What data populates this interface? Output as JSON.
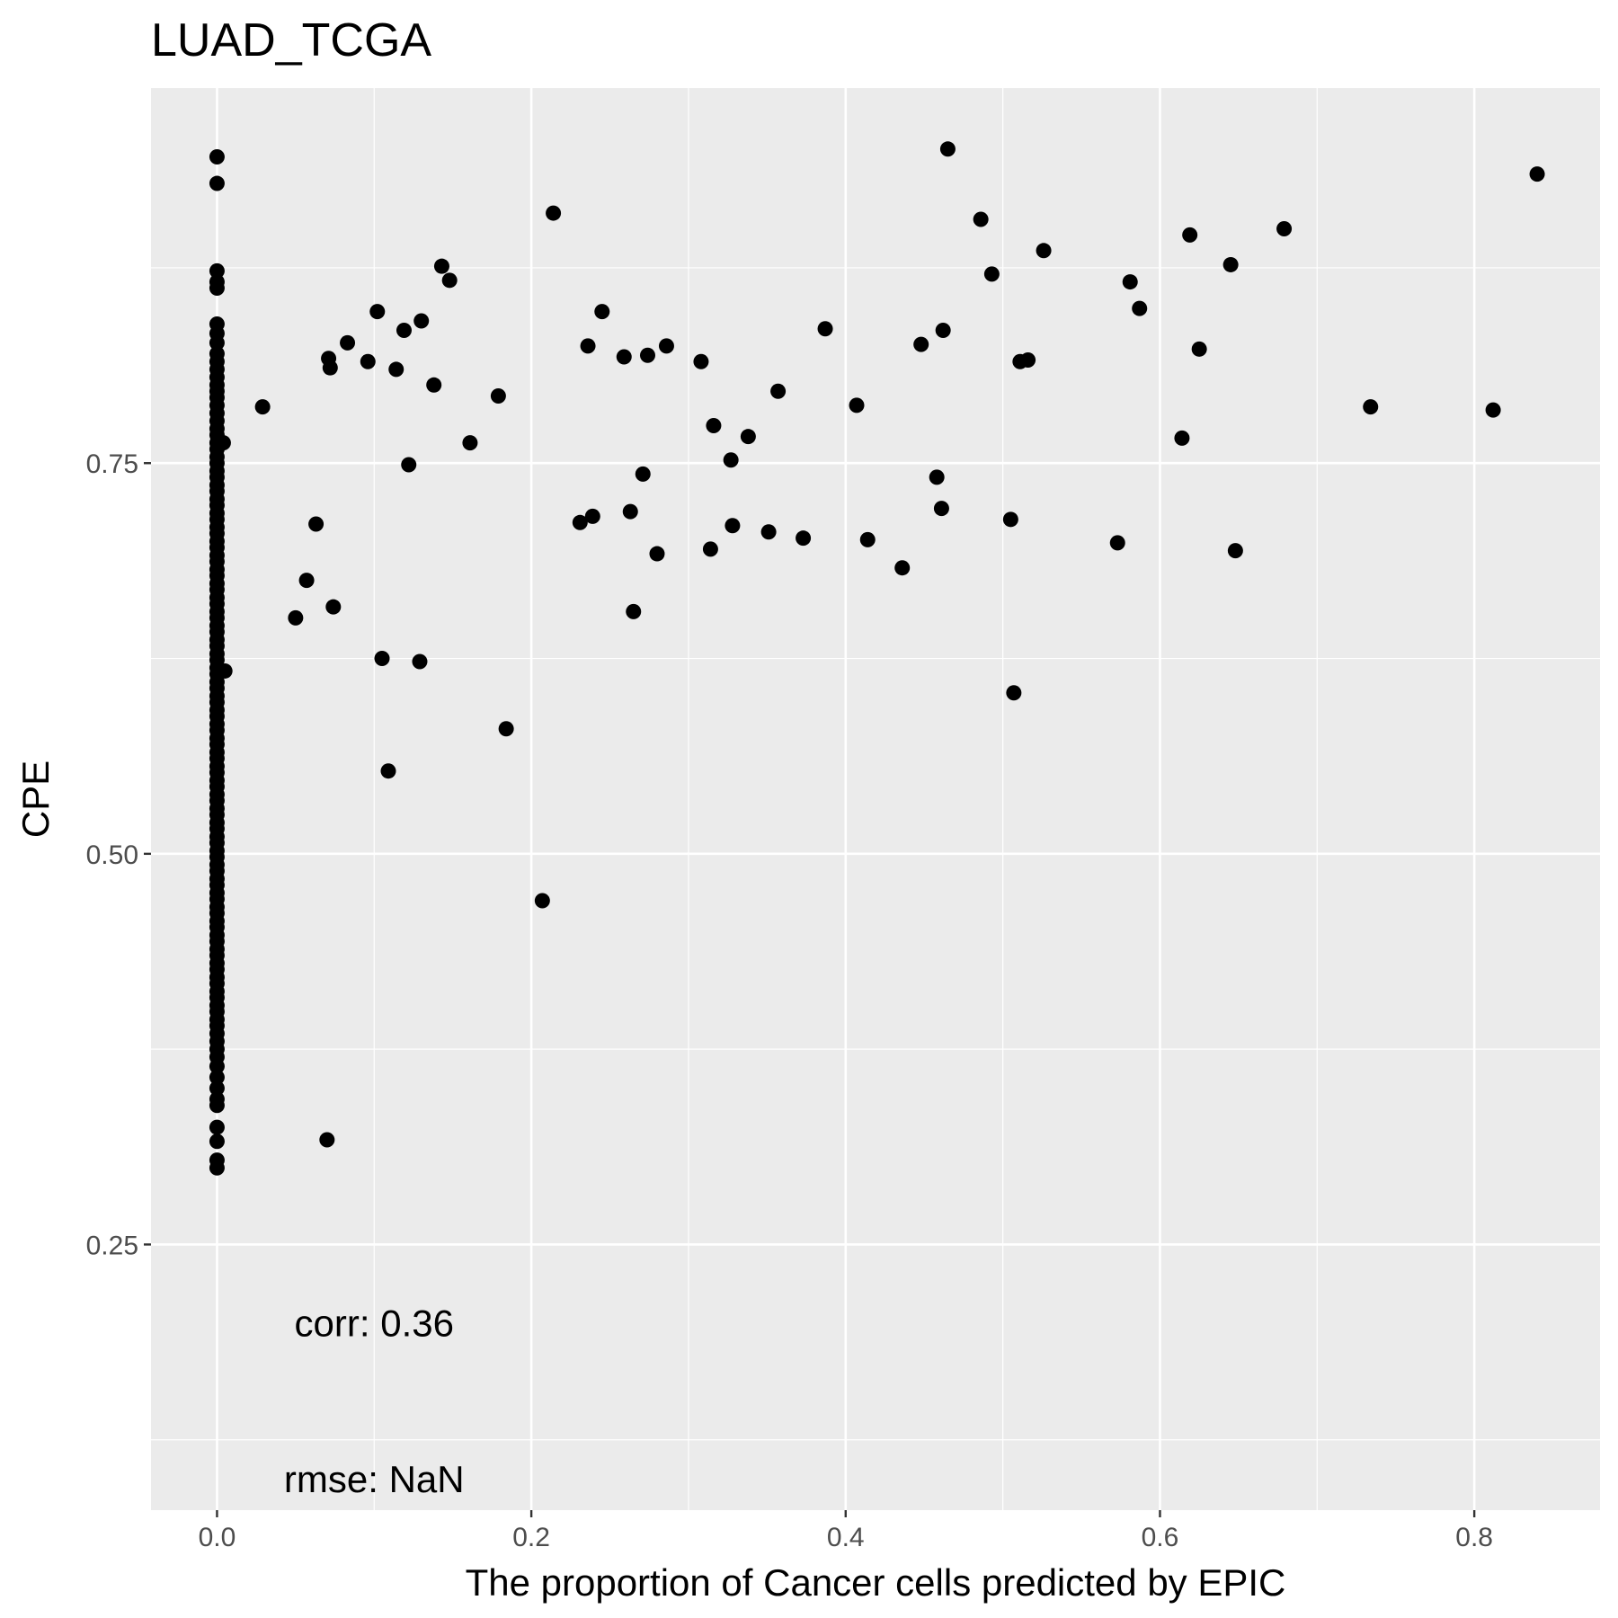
{
  "chart_data": {
    "type": "scatter",
    "title": "LUAD_TCGA",
    "xlabel": "The proportion of Cancer cells predicted by EPIC",
    "ylabel": "CPE",
    "xlim": [
      -0.042,
      0.88
    ],
    "ylim": [
      0.08,
      0.99
    ],
    "x_ticks": [
      0.0,
      0.2,
      0.4,
      0.6,
      0.8
    ],
    "x_tick_labels": [
      "0.0",
      "0.2",
      "0.4",
      "0.6",
      "0.8"
    ],
    "y_ticks": [
      0.25,
      0.5,
      0.75
    ],
    "y_tick_labels": [
      "0.25",
      "0.50",
      "0.75"
    ],
    "grid": true,
    "panel_background": "#ebebeb",
    "grid_color": "#ffffff",
    "point_color": "#000000",
    "annotations": [
      {
        "text": "corr: 0.36",
        "x": 0.1,
        "y": 0.2
      },
      {
        "text": "rmse: NaN",
        "x": 0.1,
        "y": 0.1
      }
    ],
    "points": [
      [
        0.0,
        0.946
      ],
      [
        0.0,
        0.929
      ],
      [
        0.0,
        0.873
      ],
      [
        0.0,
        0.866
      ],
      [
        0.0,
        0.862
      ],
      [
        0.0,
        0.839
      ],
      [
        0.0,
        0.833
      ],
      [
        0.0,
        0.827
      ],
      [
        0.0,
        0.82
      ],
      [
        0.0,
        0.815
      ],
      [
        0.0,
        0.81
      ],
      [
        0.0,
        0.805
      ],
      [
        0.0,
        0.8
      ],
      [
        0.0,
        0.796
      ],
      [
        0.0,
        0.792
      ],
      [
        0.0,
        0.787
      ],
      [
        0.0,
        0.782
      ],
      [
        0.0,
        0.777
      ],
      [
        0.0,
        0.772
      ],
      [
        0.0,
        0.768
      ],
      [
        0.0,
        0.763
      ],
      [
        0.0,
        0.759
      ],
      [
        0.0,
        0.754
      ],
      [
        0.0,
        0.75
      ],
      [
        0.0,
        0.745
      ],
      [
        0.0,
        0.741
      ],
      [
        0.0,
        0.736
      ],
      [
        0.0,
        0.732
      ],
      [
        0.0,
        0.727
      ],
      [
        0.0,
        0.723
      ],
      [
        0.0,
        0.718
      ],
      [
        0.0,
        0.714
      ],
      [
        0.0,
        0.709
      ],
      [
        0.0,
        0.705
      ],
      [
        0.0,
        0.7
      ],
      [
        0.0,
        0.696
      ],
      [
        0.0,
        0.691
      ],
      [
        0.0,
        0.687
      ],
      [
        0.0,
        0.682
      ],
      [
        0.0,
        0.678
      ],
      [
        0.0,
        0.673
      ],
      [
        0.0,
        0.669
      ],
      [
        0.0,
        0.664
      ],
      [
        0.0,
        0.66
      ],
      [
        0.0,
        0.655
      ],
      [
        0.0,
        0.651
      ],
      [
        0.0,
        0.646
      ],
      [
        0.0,
        0.642
      ],
      [
        0.0,
        0.637
      ],
      [
        0.0,
        0.633
      ],
      [
        0.0,
        0.628
      ],
      [
        0.0,
        0.624
      ],
      [
        0.0,
        0.619
      ],
      [
        0.0,
        0.615
      ],
      [
        0.0,
        0.61
      ],
      [
        0.0,
        0.606
      ],
      [
        0.0,
        0.601
      ],
      [
        0.0,
        0.597
      ],
      [
        0.0,
        0.592
      ],
      [
        0.0,
        0.588
      ],
      [
        0.0,
        0.583
      ],
      [
        0.0,
        0.579
      ],
      [
        0.0,
        0.574
      ],
      [
        0.0,
        0.57
      ],
      [
        0.0,
        0.565
      ],
      [
        0.0,
        0.561
      ],
      [
        0.0,
        0.556
      ],
      [
        0.0,
        0.552
      ],
      [
        0.0,
        0.547
      ],
      [
        0.0,
        0.543
      ],
      [
        0.0,
        0.538
      ],
      [
        0.0,
        0.534
      ],
      [
        0.0,
        0.529
      ],
      [
        0.0,
        0.525
      ],
      [
        0.0,
        0.52
      ],
      [
        0.0,
        0.516
      ],
      [
        0.0,
        0.511
      ],
      [
        0.0,
        0.507
      ],
      [
        0.0,
        0.502
      ],
      [
        0.0,
        0.498
      ],
      [
        0.0,
        0.493
      ],
      [
        0.0,
        0.489
      ],
      [
        0.0,
        0.484
      ],
      [
        0.0,
        0.48
      ],
      [
        0.0,
        0.475
      ],
      [
        0.0,
        0.471
      ],
      [
        0.0,
        0.466
      ],
      [
        0.0,
        0.462
      ],
      [
        0.0,
        0.457
      ],
      [
        0.0,
        0.453
      ],
      [
        0.0,
        0.448
      ],
      [
        0.0,
        0.444
      ],
      [
        0.0,
        0.439
      ],
      [
        0.0,
        0.435
      ],
      [
        0.0,
        0.43
      ],
      [
        0.0,
        0.426
      ],
      [
        0.0,
        0.421
      ],
      [
        0.0,
        0.417
      ],
      [
        0.0,
        0.412
      ],
      [
        0.0,
        0.408
      ],
      [
        0.0,
        0.403
      ],
      [
        0.0,
        0.399
      ],
      [
        0.0,
        0.394
      ],
      [
        0.0,
        0.39
      ],
      [
        0.0,
        0.385
      ],
      [
        0.0,
        0.38
      ],
      [
        0.0,
        0.375
      ],
      [
        0.0,
        0.37
      ],
      [
        0.0,
        0.364
      ],
      [
        0.0,
        0.357
      ],
      [
        0.0,
        0.35
      ],
      [
        0.0,
        0.343
      ],
      [
        0.0,
        0.339
      ],
      [
        0.0,
        0.325
      ],
      [
        0.0,
        0.316
      ],
      [
        0.0,
        0.304
      ],
      [
        0.0,
        0.299
      ],
      [
        0.004,
        0.763
      ],
      [
        0.005,
        0.617
      ],
      [
        0.029,
        0.786
      ],
      [
        0.05,
        0.651
      ],
      [
        0.057,
        0.675
      ],
      [
        0.063,
        0.711
      ],
      [
        0.07,
        0.317
      ],
      [
        0.071,
        0.817
      ],
      [
        0.072,
        0.811
      ],
      [
        0.074,
        0.658
      ],
      [
        0.083,
        0.827
      ],
      [
        0.096,
        0.815
      ],
      [
        0.102,
        0.847
      ],
      [
        0.105,
        0.625
      ],
      [
        0.109,
        0.553
      ],
      [
        0.114,
        0.81
      ],
      [
        0.119,
        0.835
      ],
      [
        0.122,
        0.749
      ],
      [
        0.129,
        0.623
      ],
      [
        0.13,
        0.841
      ],
      [
        0.138,
        0.8
      ],
      [
        0.143,
        0.876
      ],
      [
        0.148,
        0.867
      ],
      [
        0.161,
        0.763
      ],
      [
        0.179,
        0.793
      ],
      [
        0.184,
        0.58
      ],
      [
        0.207,
        0.47
      ],
      [
        0.214,
        0.91
      ],
      [
        0.231,
        0.712
      ],
      [
        0.236,
        0.825
      ],
      [
        0.239,
        0.716
      ],
      [
        0.245,
        0.847
      ],
      [
        0.259,
        0.818
      ],
      [
        0.263,
        0.719
      ],
      [
        0.265,
        0.655
      ],
      [
        0.271,
        0.743
      ],
      [
        0.274,
        0.819
      ],
      [
        0.28,
        0.692
      ],
      [
        0.286,
        0.825
      ],
      [
        0.308,
        0.815
      ],
      [
        0.314,
        0.695
      ],
      [
        0.316,
        0.774
      ],
      [
        0.327,
        0.752
      ],
      [
        0.328,
        0.71
      ],
      [
        0.338,
        0.767
      ],
      [
        0.351,
        0.706
      ],
      [
        0.357,
        0.796
      ],
      [
        0.373,
        0.702
      ],
      [
        0.387,
        0.836
      ],
      [
        0.407,
        0.787
      ],
      [
        0.414,
        0.701
      ],
      [
        0.436,
        0.683
      ],
      [
        0.448,
        0.826
      ],
      [
        0.458,
        0.741
      ],
      [
        0.461,
        0.721
      ],
      [
        0.462,
        0.835
      ],
      [
        0.465,
        0.951
      ],
      [
        0.486,
        0.906
      ],
      [
        0.493,
        0.871
      ],
      [
        0.505,
        0.714
      ],
      [
        0.507,
        0.603
      ],
      [
        0.511,
        0.815
      ],
      [
        0.516,
        0.816
      ],
      [
        0.526,
        0.886
      ],
      [
        0.573,
        0.699
      ],
      [
        0.581,
        0.866
      ],
      [
        0.587,
        0.849
      ],
      [
        0.614,
        0.766
      ],
      [
        0.619,
        0.896
      ],
      [
        0.625,
        0.823
      ],
      [
        0.645,
        0.877
      ],
      [
        0.648,
        0.694
      ],
      [
        0.679,
        0.9
      ],
      [
        0.734,
        0.786
      ],
      [
        0.812,
        0.784
      ],
      [
        0.84,
        0.935
      ]
    ]
  }
}
